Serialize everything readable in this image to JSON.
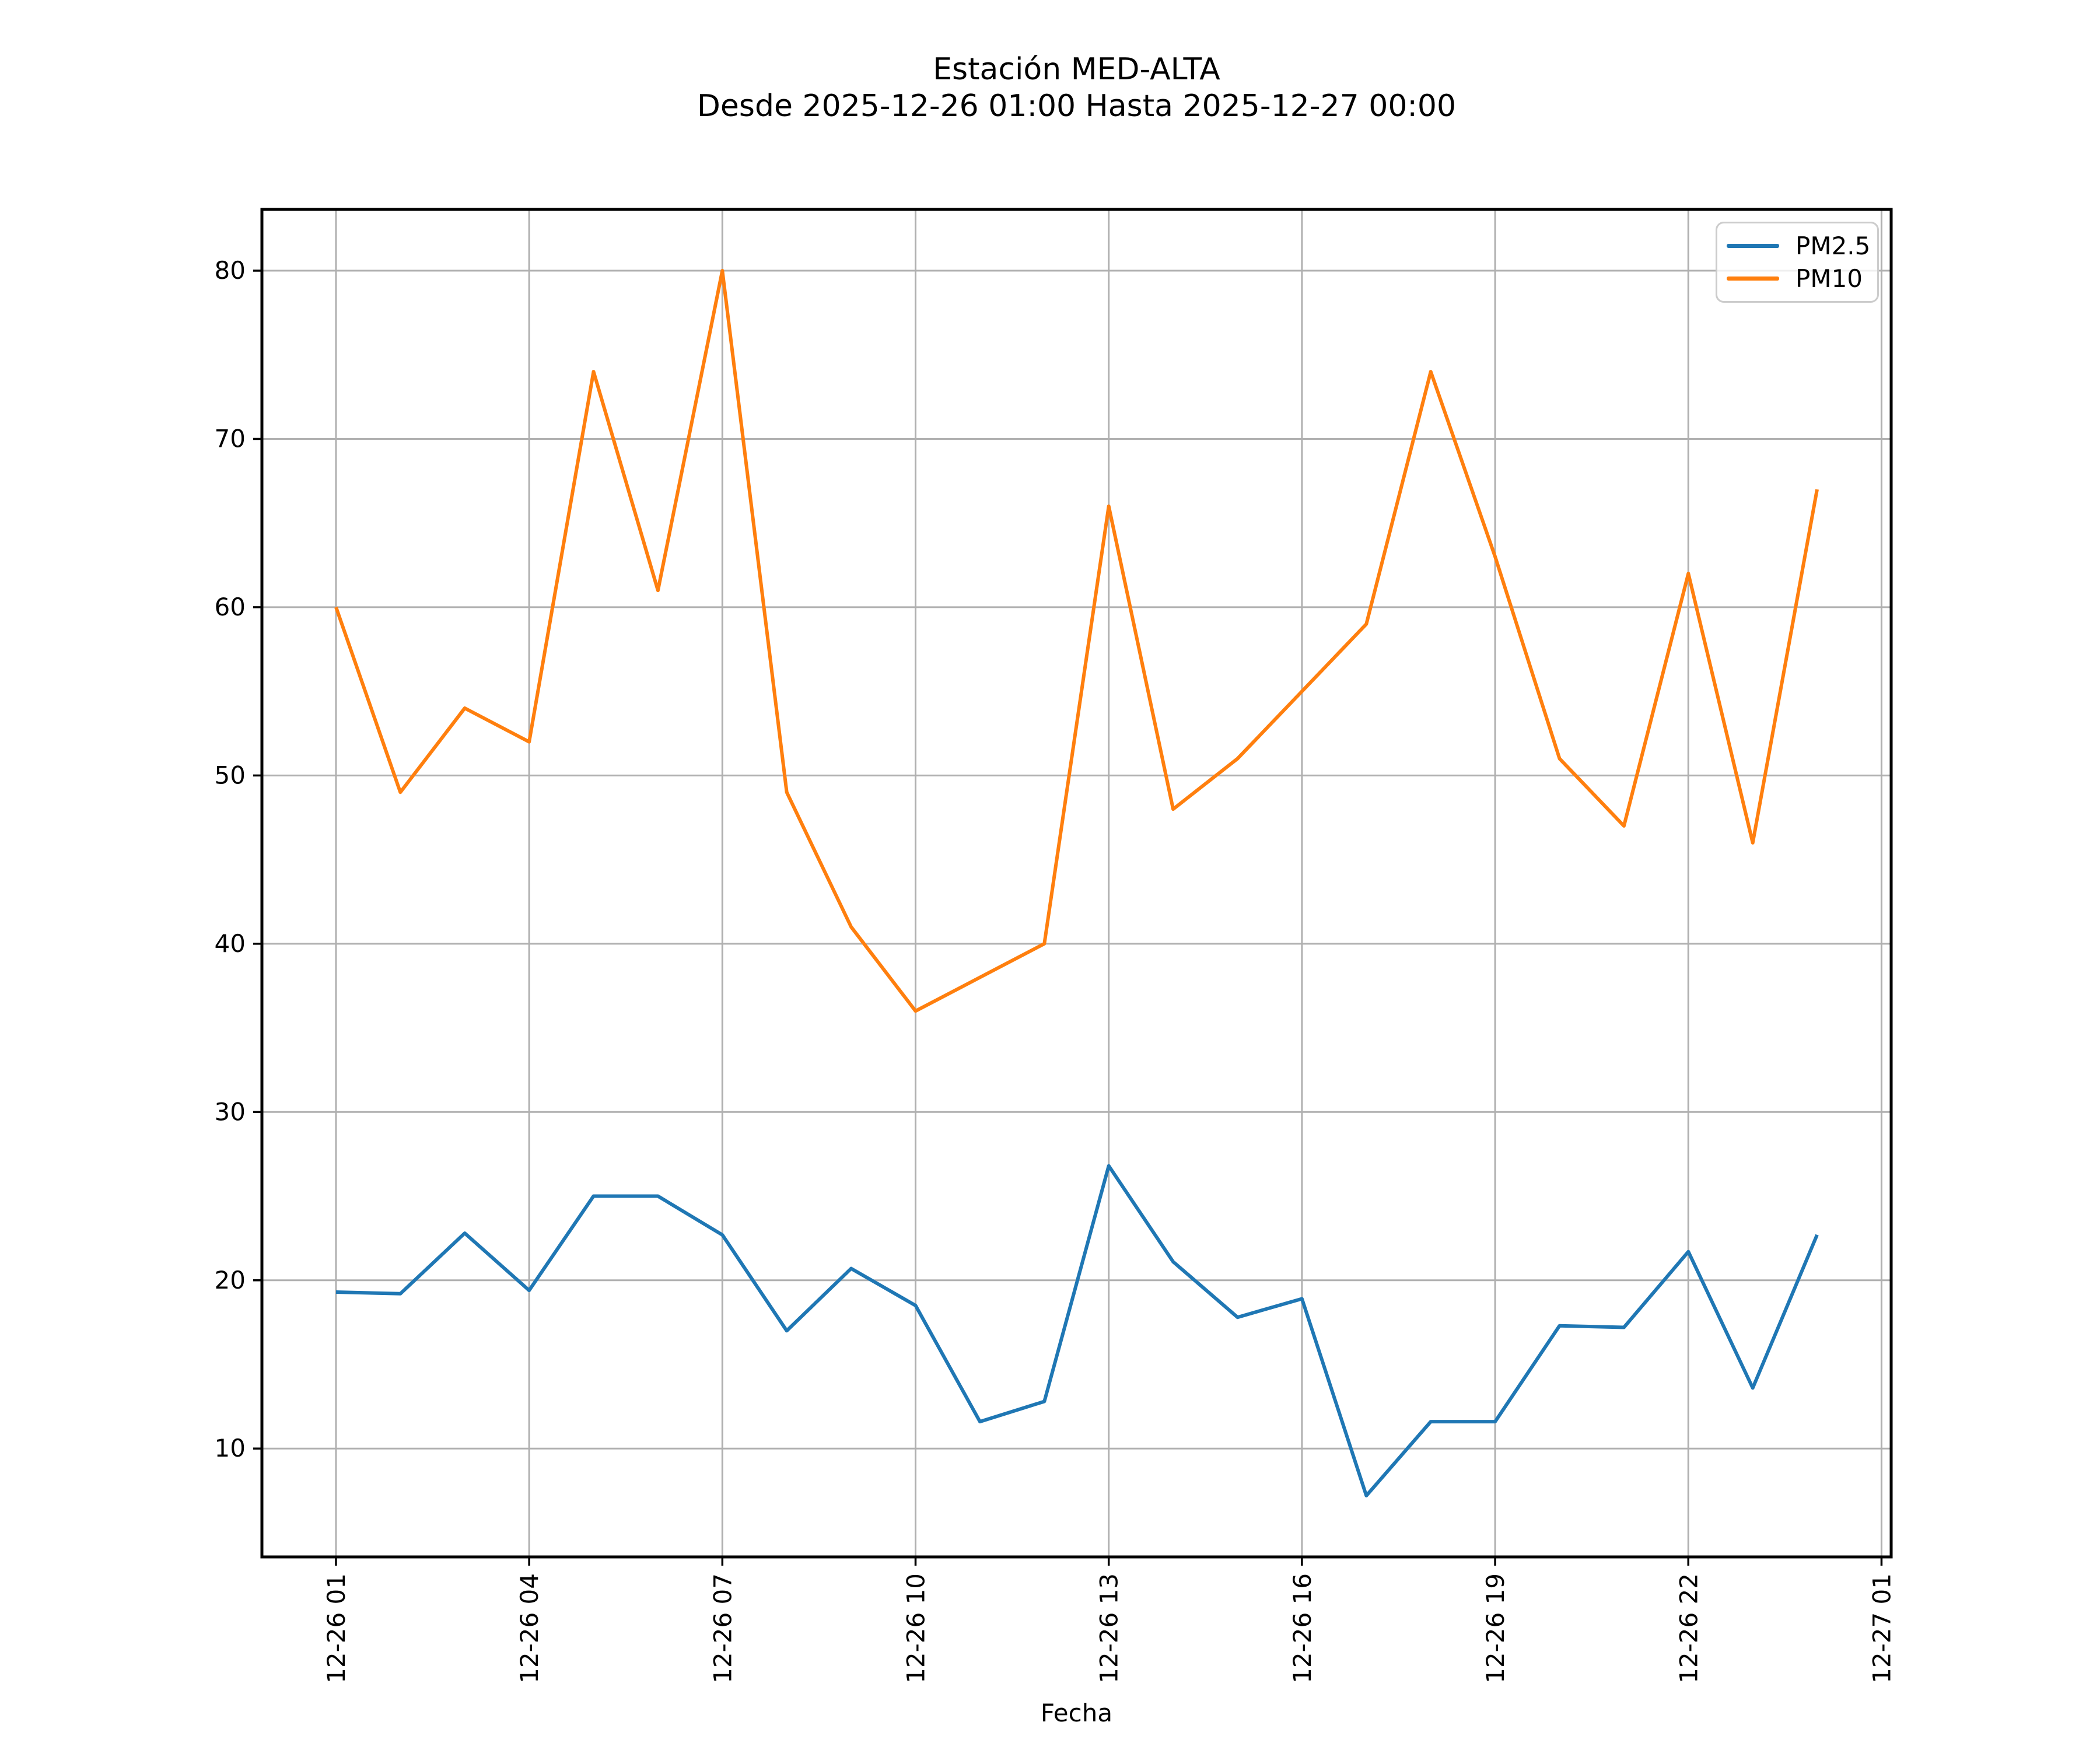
{
  "figure": {
    "title_line1": "Estación MED-ALTA",
    "title_line2": "Desde 2025-12-26 01:00 Hasta 2025-12-27 00:00",
    "xlabel": "Fecha"
  },
  "legend": {
    "position": "upper right",
    "entries": [
      {
        "label": "PM2.5",
        "color": "#1f77b4"
      },
      {
        "label": "PM10",
        "color": "#ff7f0e"
      }
    ]
  },
  "colors": {
    "pm25": "#1f77b4",
    "pm10": "#ff7f0e",
    "grid": "#b0b0b0",
    "spine": "#000000",
    "text": "#000000",
    "legend_border": "#cccccc"
  },
  "chart_data": {
    "type": "line",
    "title": "Estación MED-ALTA\nDesde 2025-12-26 01:00 Hasta 2025-12-27 00:00",
    "xlabel": "Fecha",
    "ylabel": "",
    "grid": true,
    "legend_position": "upper right",
    "x_unit": "hour of 2025-12-26 01:00 .. 2025-12-27 00:00",
    "x": [
      1,
      2,
      3,
      4,
      5,
      6,
      7,
      8,
      9,
      10,
      11,
      12,
      13,
      14,
      15,
      16,
      17,
      18,
      19,
      20,
      21,
      22,
      23,
      24
    ],
    "x_tick_hours": [
      1,
      4,
      7,
      10,
      13,
      16,
      19,
      22,
      25
    ],
    "x_tick_labels": [
      "12-26 01",
      "12-26 04",
      "12-26 07",
      "12-26 10",
      "12-26 13",
      "12-26 16",
      "12-26 19",
      "12-26 22",
      "12-27 01"
    ],
    "y_ticks": [
      10,
      20,
      30,
      40,
      50,
      60,
      70,
      80
    ],
    "xlim": [
      -0.15,
      25.15
    ],
    "ylim": [
      3.56,
      83.64
    ],
    "series": [
      {
        "name": "PM2.5",
        "color": "#1f77b4",
        "values": [
          19.3,
          19.2,
          22.8,
          19.4,
          25.0,
          25.0,
          22.7,
          17.0,
          20.7,
          18.5,
          11.6,
          12.8,
          26.8,
          21.1,
          17.8,
          18.9,
          7.2,
          11.6,
          11.6,
          17.3,
          17.2,
          21.7,
          13.6,
          22.7
        ]
      },
      {
        "name": "PM10",
        "color": "#ff7f0e",
        "values": [
          60,
          49,
          54,
          52,
          74,
          61,
          80,
          49,
          41,
          36,
          38,
          40,
          66,
          48,
          51,
          55,
          59,
          74,
          63,
          51,
          47,
          62,
          46,
          67
        ]
      }
    ]
  }
}
